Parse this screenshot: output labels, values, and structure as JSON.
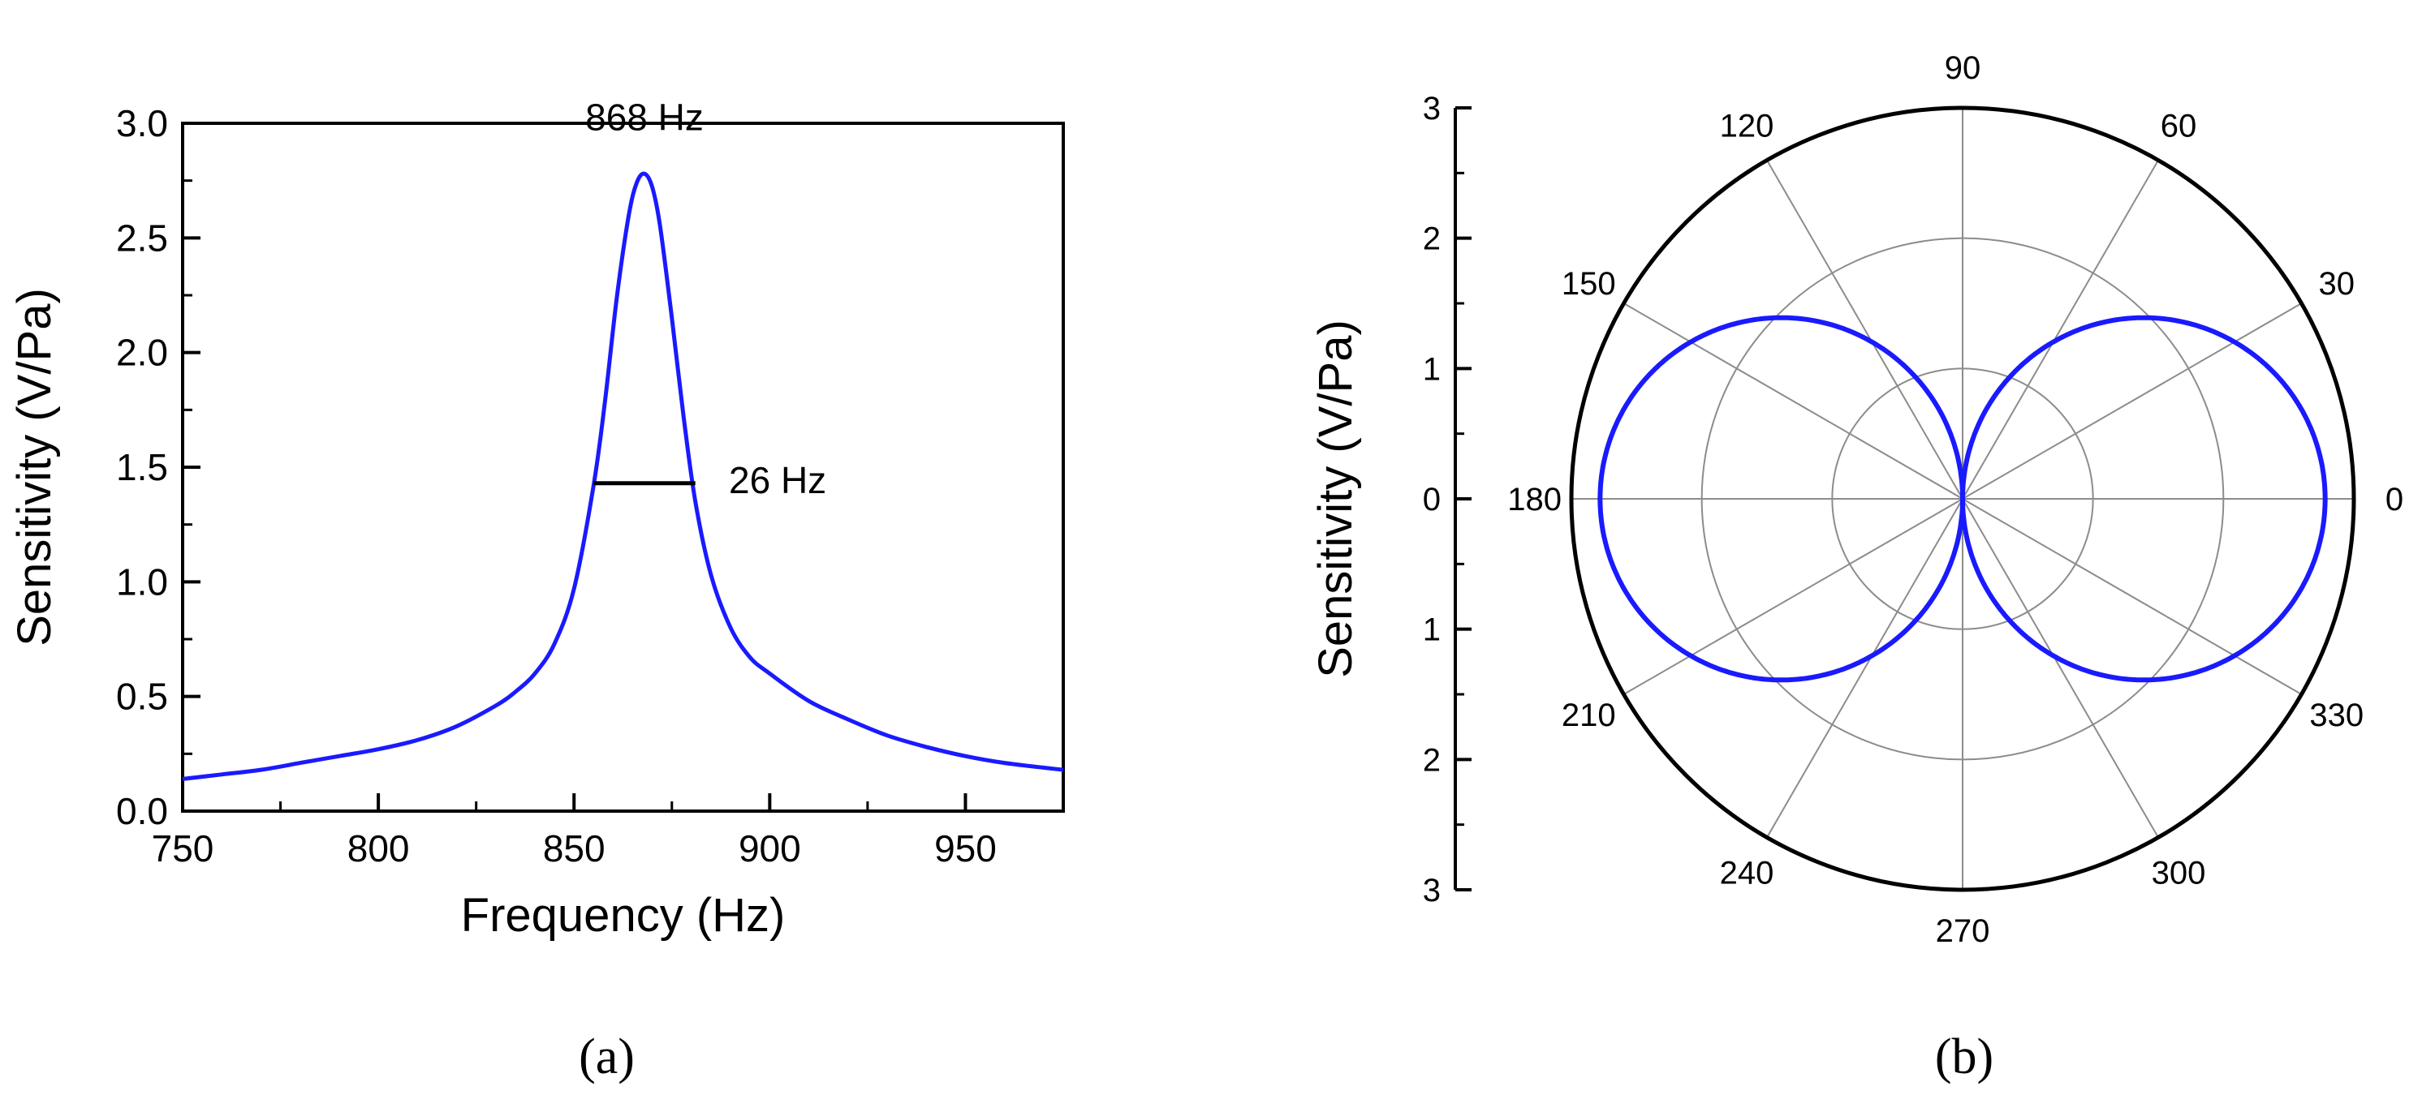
{
  "chart_data": [
    {
      "type": "line",
      "panel": "a",
      "caption": "(a)",
      "xlabel": "Frequency (Hz)",
      "ylabel": "Sensitivity (V/Pa)",
      "xlim": [
        750,
        975
      ],
      "ylim": [
        0.0,
        3.0
      ],
      "xticks": [
        750,
        800,
        850,
        900,
        950
      ],
      "xtick_labels": [
        "750",
        "800",
        "850",
        "900",
        "950"
      ],
      "yticks": [
        0.0,
        0.5,
        1.0,
        1.5,
        2.0,
        2.5,
        3.0
      ],
      "ytick_labels": [
        "0.0",
        "0.5",
        "1.0",
        "1.5",
        "2.0",
        "2.5",
        "3.0"
      ],
      "series": [
        {
          "name": "Sensitivity",
          "color": "#1a1aff",
          "x": [
            750,
            760,
            770,
            780,
            790,
            800,
            810,
            820,
            830,
            835,
            840,
            845,
            850,
            855,
            858,
            861,
            864,
            866,
            868,
            870,
            872,
            875,
            878,
            881,
            885,
            890,
            895,
            900,
            910,
            920,
            930,
            940,
            950,
            960,
            975
          ],
          "y": [
            0.14,
            0.16,
            0.18,
            0.21,
            0.24,
            0.27,
            0.31,
            0.37,
            0.46,
            0.52,
            0.6,
            0.73,
            0.97,
            1.42,
            1.8,
            2.25,
            2.6,
            2.74,
            2.78,
            2.72,
            2.55,
            2.15,
            1.72,
            1.35,
            1.03,
            0.8,
            0.67,
            0.6,
            0.48,
            0.4,
            0.33,
            0.28,
            0.24,
            0.21,
            0.18
          ]
        }
      ],
      "annotations": [
        {
          "text": "868 Hz",
          "x": 868,
          "y": 2.97
        },
        {
          "text": "26 Hz",
          "x": 885,
          "y": 1.43
        }
      ],
      "fwhm_bar": {
        "x_start": 855,
        "x_end": 881,
        "y": 1.43,
        "color": "#000000"
      }
    },
    {
      "type": "polar",
      "panel": "b",
      "caption": "(b)",
      "ylabel": "Sensitivity (V/Pa)",
      "rlim": [
        0,
        3
      ],
      "radial_ticks": [
        0,
        1,
        2,
        3
      ],
      "radial_axis_labels": [
        "3",
        "2",
        "1",
        "0",
        "1",
        "2",
        "3"
      ],
      "angle_labels": [
        "0",
        "30",
        "60",
        "90",
        "120",
        "150",
        "180",
        "210",
        "240",
        "270",
        "300",
        "330"
      ],
      "angles_deg": [
        0,
        30,
        60,
        90,
        120,
        150,
        180,
        210,
        240,
        270,
        300,
        330
      ],
      "series": [
        {
          "name": "Figure-of-eight directivity",
          "color": "#1a1aff",
          "function": "r = 2.78 * |cos(theta)|",
          "peak": 2.78
        }
      ]
    }
  ]
}
